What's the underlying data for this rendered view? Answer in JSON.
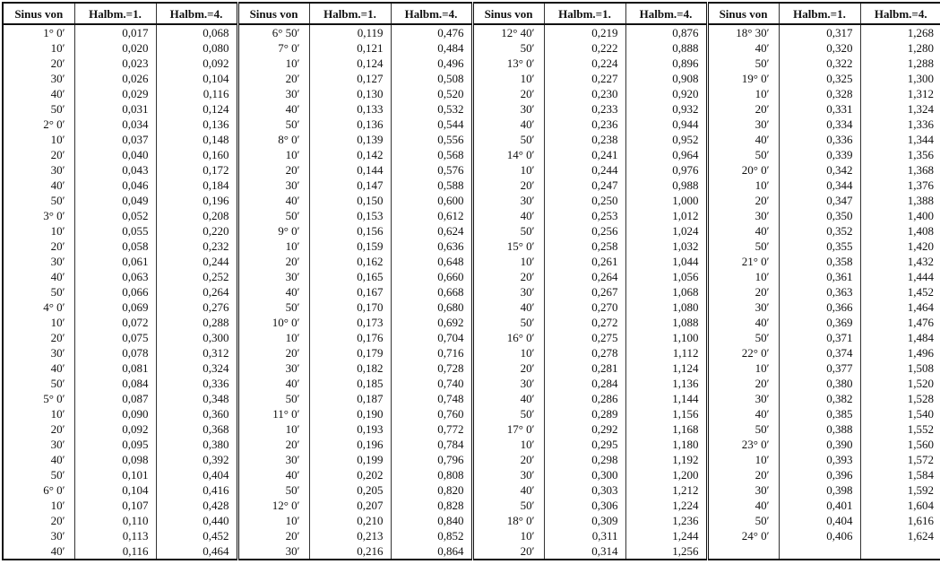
{
  "table": {
    "groups": [
      {
        "headers": [
          "Sinus von",
          "Halbm.=1.",
          "Halbm.=4."
        ],
        "rows": [
          [
            "1° 0′",
            "0,017",
            "0,068"
          ],
          [
            "10′",
            "0,020",
            "0,080"
          ],
          [
            "20′",
            "0,023",
            "0,092"
          ],
          [
            "30′",
            "0,026",
            "0,104"
          ],
          [
            "40′",
            "0,029",
            "0,116"
          ],
          [
            "50′",
            "0,031",
            "0,124"
          ],
          [
            "2° 0′",
            "0,034",
            "0,136"
          ],
          [
            "10′",
            "0,037",
            "0,148"
          ],
          [
            "20′",
            "0,040",
            "0,160"
          ],
          [
            "30′",
            "0,043",
            "0,172"
          ],
          [
            "40′",
            "0,046",
            "0,184"
          ],
          [
            "50′",
            "0,049",
            "0,196"
          ],
          [
            "3° 0′",
            "0,052",
            "0,208"
          ],
          [
            "10′",
            "0,055",
            "0,220"
          ],
          [
            "20′",
            "0,058",
            "0,232"
          ],
          [
            "30′",
            "0,061",
            "0,244"
          ],
          [
            "40′",
            "0,063",
            "0,252"
          ],
          [
            "50′",
            "0,066",
            "0,264"
          ],
          [
            "4° 0′",
            "0,069",
            "0,276"
          ],
          [
            "10′",
            "0,072",
            "0,288"
          ],
          [
            "20′",
            "0,075",
            "0,300"
          ],
          [
            "30′",
            "0,078",
            "0,312"
          ],
          [
            "40′",
            "0,081",
            "0,324"
          ],
          [
            "50′",
            "0,084",
            "0,336"
          ],
          [
            "5° 0′",
            "0,087",
            "0,348"
          ],
          [
            "10′",
            "0,090",
            "0,360"
          ],
          [
            "20′",
            "0,092",
            "0,368"
          ],
          [
            "30′",
            "0,095",
            "0,380"
          ],
          [
            "40′",
            "0,098",
            "0,392"
          ],
          [
            "50′",
            "0,101",
            "0,404"
          ],
          [
            "6° 0′",
            "0,104",
            "0,416"
          ],
          [
            "10′",
            "0,107",
            "0,428"
          ],
          [
            "20′",
            "0,110",
            "0,440"
          ],
          [
            "30′",
            "0,113",
            "0,452"
          ],
          [
            "40′",
            "0,116",
            "0,464"
          ]
        ]
      },
      {
        "headers": [
          "Sinus von",
          "Halbm.=1.",
          "Halbm.=4."
        ],
        "rows": [
          [
            "6° 50′",
            "0,119",
            "0,476"
          ],
          [
            "7° 0′",
            "0,121",
            "0,484"
          ],
          [
            "10′",
            "0,124",
            "0,496"
          ],
          [
            "20′",
            "0,127",
            "0,508"
          ],
          [
            "30′",
            "0,130",
            "0,520"
          ],
          [
            "40′",
            "0,133",
            "0,532"
          ],
          [
            "50′",
            "0,136",
            "0,544"
          ],
          [
            "8° 0′",
            "0,139",
            "0,556"
          ],
          [
            "10′",
            "0,142",
            "0,568"
          ],
          [
            "20′",
            "0,144",
            "0,576"
          ],
          [
            "30′",
            "0,147",
            "0,588"
          ],
          [
            "40′",
            "0,150",
            "0,600"
          ],
          [
            "50′",
            "0,153",
            "0,612"
          ],
          [
            "9° 0′",
            "0,156",
            "0,624"
          ],
          [
            "10′",
            "0,159",
            "0,636"
          ],
          [
            "20′",
            "0,162",
            "0,648"
          ],
          [
            "30′",
            "0,165",
            "0,660"
          ],
          [
            "40′",
            "0,167",
            "0,668"
          ],
          [
            "50′",
            "0,170",
            "0,680"
          ],
          [
            "10° 0′",
            "0,173",
            "0,692"
          ],
          [
            "10′",
            "0,176",
            "0,704"
          ],
          [
            "20′",
            "0,179",
            "0,716"
          ],
          [
            "30′",
            "0,182",
            "0,728"
          ],
          [
            "40′",
            "0,185",
            "0,740"
          ],
          [
            "50′",
            "0,187",
            "0,748"
          ],
          [
            "11° 0′",
            "0,190",
            "0,760"
          ],
          [
            "10′",
            "0,193",
            "0,772"
          ],
          [
            "20′",
            "0,196",
            "0,784"
          ],
          [
            "30′",
            "0,199",
            "0,796"
          ],
          [
            "40′",
            "0,202",
            "0,808"
          ],
          [
            "50′",
            "0,205",
            "0,820"
          ],
          [
            "12° 0′",
            "0,207",
            "0,828"
          ],
          [
            "10′",
            "0,210",
            "0,840"
          ],
          [
            "20′",
            "0,213",
            "0,852"
          ],
          [
            "30′",
            "0,216",
            "0,864"
          ]
        ]
      },
      {
        "headers": [
          "Sinus von",
          "Halbm.=1.",
          "Halbm.=4."
        ],
        "rows": [
          [
            "12° 40′",
            "0,219",
            "0,876"
          ],
          [
            "50′",
            "0,222",
            "0,888"
          ],
          [
            "13° 0′",
            "0,224",
            "0,896"
          ],
          [
            "10′",
            "0,227",
            "0,908"
          ],
          [
            "20′",
            "0,230",
            "0,920"
          ],
          [
            "30′",
            "0,233",
            "0,932"
          ],
          [
            "40′",
            "0,236",
            "0,944"
          ],
          [
            "50′",
            "0,238",
            "0,952"
          ],
          [
            "14° 0′",
            "0,241",
            "0,964"
          ],
          [
            "10′",
            "0,244",
            "0,976"
          ],
          [
            "20′",
            "0,247",
            "0,988"
          ],
          [
            "30′",
            "0,250",
            "1,000"
          ],
          [
            "40′",
            "0,253",
            "1,012"
          ],
          [
            "50′",
            "0,256",
            "1,024"
          ],
          [
            "15° 0′",
            "0,258",
            "1,032"
          ],
          [
            "10′",
            "0,261",
            "1,044"
          ],
          [
            "20′",
            "0,264",
            "1,056"
          ],
          [
            "30′",
            "0,267",
            "1,068"
          ],
          [
            "40′",
            "0,270",
            "1,080"
          ],
          [
            "50′",
            "0,272",
            "1,088"
          ],
          [
            "16° 0′",
            "0,275",
            "1,100"
          ],
          [
            "10′",
            "0,278",
            "1,112"
          ],
          [
            "20′",
            "0,281",
            "1,124"
          ],
          [
            "30′",
            "0,284",
            "1,136"
          ],
          [
            "40′",
            "0,286",
            "1,144"
          ],
          [
            "50′",
            "0,289",
            "1,156"
          ],
          [
            "17° 0′",
            "0,292",
            "1,168"
          ],
          [
            "10′",
            "0,295",
            "1,180"
          ],
          [
            "20′",
            "0,298",
            "1,192"
          ],
          [
            "30′",
            "0,300",
            "1,200"
          ],
          [
            "40′",
            "0,303",
            "1,212"
          ],
          [
            "50′",
            "0,306",
            "1,224"
          ],
          [
            "18° 0′",
            "0,309",
            "1,236"
          ],
          [
            "10′",
            "0,311",
            "1,244"
          ],
          [
            "20′",
            "0,314",
            "1,256"
          ]
        ]
      },
      {
        "headers": [
          "Sinus von",
          "Halbm.=1.",
          "Halbm.=4."
        ],
        "rows": [
          [
            "18° 30′",
            "0,317",
            "1,268"
          ],
          [
            "40′",
            "0,320",
            "1,280"
          ],
          [
            "50′",
            "0,322",
            "1,288"
          ],
          [
            "19° 0′",
            "0,325",
            "1,300"
          ],
          [
            "10′",
            "0,328",
            "1,312"
          ],
          [
            "20′",
            "0,331",
            "1,324"
          ],
          [
            "30′",
            "0,334",
            "1,336"
          ],
          [
            "40′",
            "0,336",
            "1,344"
          ],
          [
            "50′",
            "0,339",
            "1,356"
          ],
          [
            "20° 0′",
            "0,342",
            "1,368"
          ],
          [
            "10′",
            "0,344",
            "1,376"
          ],
          [
            "20′",
            "0,347",
            "1,388"
          ],
          [
            "30′",
            "0,350",
            "1,400"
          ],
          [
            "40′",
            "0,352",
            "1,408"
          ],
          [
            "50′",
            "0,355",
            "1,420"
          ],
          [
            "21° 0′",
            "0,358",
            "1,432"
          ],
          [
            "10′",
            "0,361",
            "1,444"
          ],
          [
            "20′",
            "0,363",
            "1,452"
          ],
          [
            "30′",
            "0,366",
            "1,464"
          ],
          [
            "40′",
            "0,369",
            "1,476"
          ],
          [
            "50′",
            "0,371",
            "1,484"
          ],
          [
            "22° 0′",
            "0,374",
            "1,496"
          ],
          [
            "10′",
            "0,377",
            "1,508"
          ],
          [
            "20′",
            "0,380",
            "1,520"
          ],
          [
            "30′",
            "0,382",
            "1,528"
          ],
          [
            "40′",
            "0,385",
            "1,540"
          ],
          [
            "50′",
            "0,388",
            "1,552"
          ],
          [
            "23° 0′",
            "0,390",
            "1,560"
          ],
          [
            "10′",
            "0,393",
            "1,572"
          ],
          [
            "20′",
            "0,396",
            "1,584"
          ],
          [
            "30′",
            "0,398",
            "1,592"
          ],
          [
            "40′",
            "0,401",
            "1,604"
          ],
          [
            "50′",
            "0,404",
            "1,616"
          ],
          [
            "24° 0′",
            "0,406",
            "1,624"
          ]
        ]
      }
    ]
  }
}
